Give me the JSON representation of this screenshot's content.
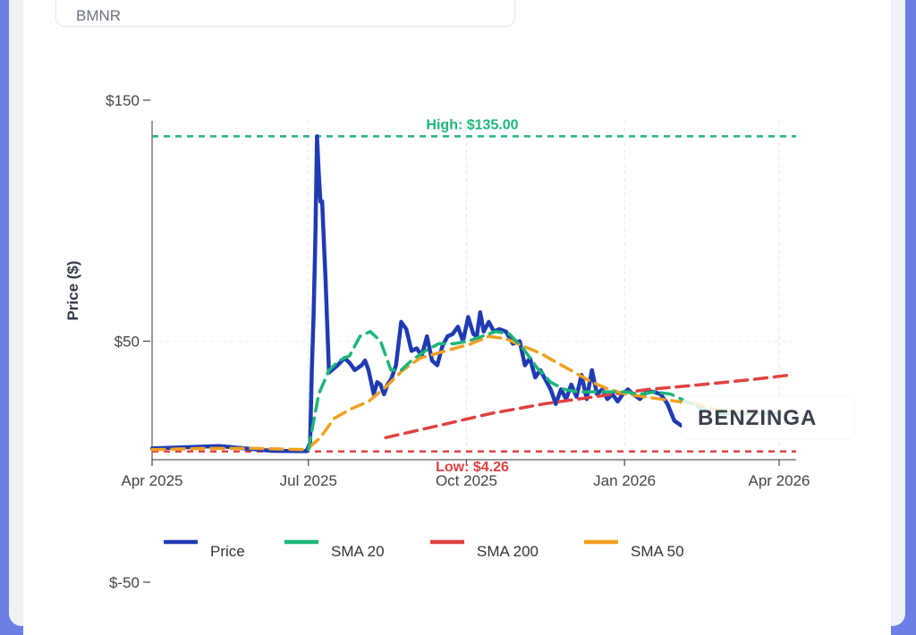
{
  "ticker": {
    "label": "BMNR"
  },
  "watermark": {
    "text": "BENZINGA"
  },
  "chart_data": {
    "type": "line",
    "ylabel": "Price ($)",
    "xlabel": "",
    "ylim": [
      -50,
      150
    ],
    "y_ticks": [
      {
        "value": 150,
        "label": "$150"
      },
      {
        "value": 50,
        "label": "$50"
      },
      {
        "value": -50,
        "label": "$-50"
      }
    ],
    "x_ticks": [
      {
        "value": "2025-04-01",
        "label": "Apr 2025"
      },
      {
        "value": "2025-07-01",
        "label": "Jul 2025"
      },
      {
        "value": "2025-10-01",
        "label": "Oct 2025"
      },
      {
        "value": "2026-01-01",
        "label": "Jan 2026"
      },
      {
        "value": "2026-04-01",
        "label": "Apr 2026"
      }
    ],
    "xlim": [
      "2025-04-01",
      "2026-04-01"
    ],
    "annotations": {
      "high": {
        "value": 135.0,
        "label": "High: $135.00",
        "color": "#1db57a"
      },
      "low": {
        "value": 4.26,
        "label": "Low: $4.26",
        "color": "#e04040"
      }
    },
    "series": [
      {
        "name": "Price",
        "color": "#1f3bb3",
        "x": [
          "2025-04-01",
          "2025-04-20",
          "2025-05-10",
          "2025-05-25",
          "2025-06-10",
          "2025-06-25",
          "2025-06-30",
          "2025-07-02",
          "2025-07-03",
          "2025-07-04",
          "2025-07-05",
          "2025-07-06",
          "2025-07-07",
          "2025-07-08",
          "2025-07-09",
          "2025-07-11",
          "2025-07-13",
          "2025-07-18",
          "2025-07-22",
          "2025-07-25",
          "2025-07-28",
          "2025-08-01",
          "2025-08-03",
          "2025-08-05",
          "2025-08-08",
          "2025-08-10",
          "2025-08-12",
          "2025-08-14",
          "2025-08-16",
          "2025-08-18",
          "2025-08-21",
          "2025-08-24",
          "2025-08-27",
          "2025-08-30",
          "2025-09-02",
          "2025-09-05",
          "2025-09-08",
          "2025-09-11",
          "2025-09-14",
          "2025-09-17",
          "2025-09-20",
          "2025-09-23",
          "2025-09-26",
          "2025-09-29",
          "2025-10-02",
          "2025-10-05",
          "2025-10-07",
          "2025-10-09",
          "2025-10-11",
          "2025-10-14",
          "2025-10-17",
          "2025-10-20",
          "2025-10-24",
          "2025-10-28",
          "2025-11-01",
          "2025-11-04",
          "2025-11-07",
          "2025-11-10",
          "2025-11-13",
          "2025-11-16",
          "2025-11-19",
          "2025-11-22",
          "2025-11-25",
          "2025-11-28",
          "2025-12-01",
          "2025-12-04",
          "2025-12-07",
          "2025-12-10",
          "2025-12-13",
          "2025-12-16",
          "2025-12-19",
          "2025-12-22",
          "2025-12-25",
          "2025-12-28",
          "2025-12-31",
          "2026-01-03",
          "2026-01-06",
          "2026-01-10",
          "2026-01-14",
          "2026-01-18",
          "2026-01-22",
          "2026-01-26",
          "2026-01-30",
          "2026-02-03"
        ],
        "values": [
          5.5,
          6,
          6.5,
          5.5,
          4.5,
          4.4,
          4.4,
          8,
          38,
          60,
          92,
          135,
          120,
          108,
          108,
          75,
          37,
          40,
          43,
          41,
          38,
          40,
          42,
          38,
          28,
          33,
          32,
          28,
          32,
          34,
          40,
          58,
          55,
          46,
          47,
          44,
          52,
          42,
          40,
          48,
          52,
          53,
          56,
          50,
          60,
          53,
          52,
          62,
          54,
          58,
          54,
          55,
          54,
          49,
          50,
          40,
          43,
          35,
          38,
          34,
          30,
          24,
          30,
          26,
          32,
          27,
          36,
          26,
          38,
          28,
          30,
          26,
          28,
          25,
          28,
          30,
          28,
          26,
          29,
          29,
          28,
          24,
          17,
          15
        ]
      },
      {
        "name": "SMA 20",
        "color": "#1db57a",
        "x": [
          "2025-07-01",
          "2025-07-07",
          "2025-07-13",
          "2025-07-19",
          "2025-07-25",
          "2025-07-31",
          "2025-08-06",
          "2025-08-12",
          "2025-08-18",
          "2025-08-24",
          "2025-08-30",
          "2025-09-07",
          "2025-09-15",
          "2025-09-24",
          "2025-10-02",
          "2025-10-10",
          "2025-10-18",
          "2025-10-26",
          "2025-11-03",
          "2025-11-11",
          "2025-11-19",
          "2025-11-27",
          "2025-12-05",
          "2025-12-14",
          "2025-12-23",
          "2026-01-01",
          "2026-01-10",
          "2026-01-19",
          "2026-01-28",
          "2026-02-06",
          "2026-02-15",
          "2026-02-24",
          "2026-03-05",
          "2026-03-14",
          "2026-03-23",
          "2026-04-01"
        ],
        "values": [
          5,
          28,
          38,
          42,
          44,
          52,
          54,
          50,
          38,
          38,
          42,
          46,
          49,
          49,
          50,
          52,
          54,
          53,
          47,
          39,
          33,
          30,
          29,
          29,
          29,
          29,
          28,
          29,
          28,
          25,
          22,
          20,
          20,
          20,
          20,
          20
        ]
      },
      {
        "name": "SMA 200",
        "color": "#e04040",
        "x": [
          "2025-08-15",
          "2025-09-15",
          "2025-10-15",
          "2025-11-15",
          "2025-12-15",
          "2026-01-15",
          "2026-02-15",
          "2026-03-15",
          "2026-04-08"
        ],
        "values": [
          10,
          15,
          20,
          24,
          27,
          30,
          32,
          34,
          36
        ]
      },
      {
        "name": "SMA 50",
        "color": "#f0a020",
        "x": [
          "2025-04-01",
          "2025-05-01",
          "2025-06-01",
          "2025-06-30",
          "2025-07-08",
          "2025-07-16",
          "2025-07-26",
          "2025-08-05",
          "2025-08-15",
          "2025-08-25",
          "2025-09-04",
          "2025-09-14",
          "2025-09-24",
          "2025-10-04",
          "2025-10-14",
          "2025-10-24",
          "2025-11-03",
          "2025-11-13",
          "2025-11-23",
          "2025-12-03",
          "2025-12-13",
          "2025-12-23",
          "2026-01-02",
          "2026-01-12",
          "2026-01-22",
          "2026-02-01",
          "2026-02-11",
          "2026-02-21",
          "2026-03-03",
          "2026-03-13",
          "2026-03-23",
          "2026-04-04"
        ],
        "values": [
          5,
          5.5,
          5.5,
          5,
          10,
          18,
          22,
          25,
          31,
          38,
          43,
          45,
          47,
          49,
          52,
          51,
          48,
          45,
          41,
          37,
          33,
          30,
          28,
          27,
          26,
          25,
          24,
          22,
          21,
          20,
          20,
          20
        ]
      }
    ]
  }
}
